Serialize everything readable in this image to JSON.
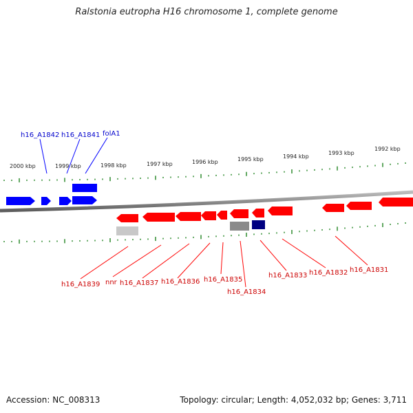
{
  "title": "Ralstonia eutropha H16 chromosome 1, complete genome",
  "footer": {
    "accession": "Accession: NC_008313",
    "stats": "Topology: circular; Length: 4,052,032 bp; Genes: 3,711"
  },
  "colors": {
    "forward": "#0000ff",
    "reverse": "#ff0000",
    "tick": "#2e8b2e",
    "backbone": "#888888",
    "grey_gene": "#8a8a8a",
    "light_grey_gene": "#c8c8c8",
    "navy_gene": "#000080"
  },
  "scale_labels": [
    "2000 kbp",
    "1999 kbp",
    "1998 kbp",
    "1997 kbp",
    "1996 kbp",
    "1995 kbp",
    "1994 kbp",
    "1993 kbp",
    "1992 kbp"
  ],
  "forward_gene_labels": [
    "h16_A1842",
    "h16_A1841",
    "folA1"
  ],
  "reverse_gene_labels": [
    "h16_A1839",
    "nnr",
    "h16_A1837",
    "h16_A1836",
    "h16_A1835",
    "h16_A1834",
    "h16_A1833",
    "h16_A1832",
    "h16_A1831"
  ]
}
